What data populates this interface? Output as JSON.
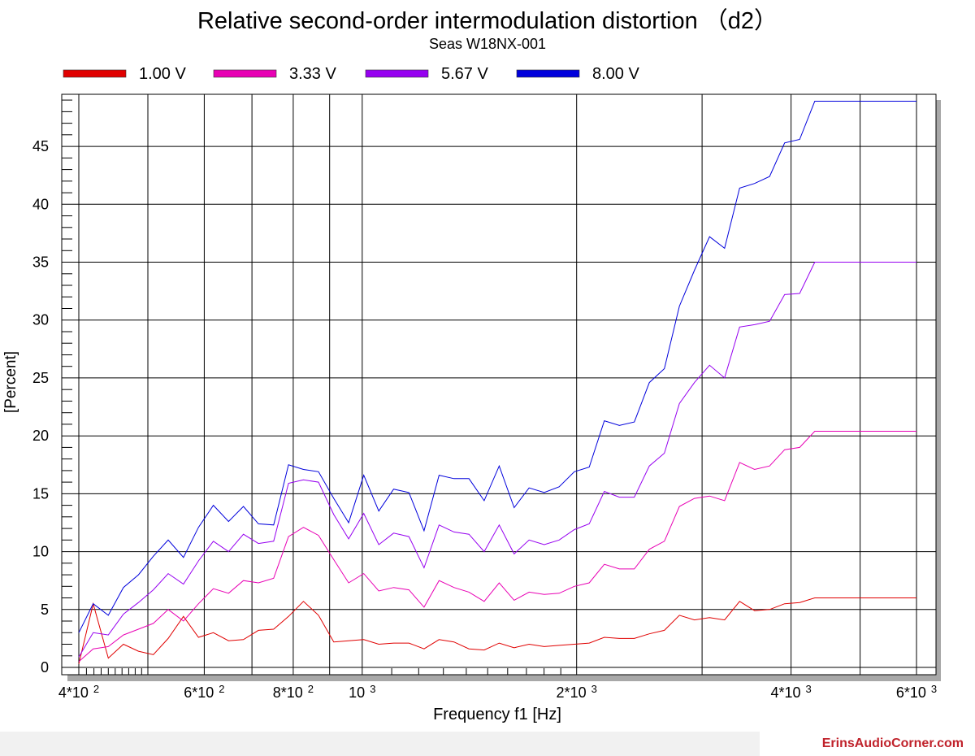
{
  "chart_data": {
    "type": "line",
    "title": "Relative second-order intermodulation distortion （d2）",
    "subtitle": "Seas W18NX-001",
    "xlabel": "Frequency f1  [Hz]",
    "ylabel": "[Percent]",
    "x_scale": "log",
    "xlim": [
      380,
      6300
    ],
    "ylim": [
      0,
      49.5
    ],
    "grid": true,
    "legend_position": "top",
    "x_tick_labels": [
      {
        "value": 400,
        "label": "4*10",
        "exp": "2"
      },
      {
        "value": 600,
        "label": "6*10",
        "exp": "2"
      },
      {
        "value": 800,
        "label": "8*10",
        "exp": "2"
      },
      {
        "value": 1000,
        "label": "10",
        "exp": "3"
      },
      {
        "value": 2000,
        "label": "2*10",
        "exp": "3"
      },
      {
        "value": 4000,
        "label": "4*10",
        "exp": "3"
      },
      {
        "value": 6000,
        "label": "6*10",
        "exp": "3"
      }
    ],
    "y_ticks": [
      0,
      5,
      10,
      15,
      20,
      25,
      30,
      35,
      40,
      45
    ],
    "x": [
      400,
      419,
      440,
      462,
      485,
      509,
      534,
      561,
      589,
      618,
      649,
      681,
      715,
      751,
      788,
      827,
      868,
      912,
      957,
      1005,
      1055,
      1107,
      1163,
      1221,
      1282,
      1345,
      1412,
      1483,
      1557,
      1634,
      1715,
      1801,
      1890,
      1985,
      2083,
      2187,
      2296,
      2410,
      2530,
      2656,
      2788,
      2927,
      3073,
      3226,
      3387,
      3555,
      3732,
      3918,
      4113,
      4318,
      4533,
      4759,
      4996,
      5244,
      5505,
      5779,
      6000
    ],
    "series": [
      {
        "name": "1.00 V",
        "color": "#e00000",
        "values": [
          0.3,
          5.5,
          0.8,
          2.0,
          1.4,
          1.1,
          2.5,
          4.4,
          2.6,
          3.0,
          2.3,
          2.4,
          3.2,
          3.3,
          4.4,
          5.7,
          4.5,
          2.2,
          2.3,
          2.4,
          2.0,
          2.1,
          2.1,
          1.6,
          2.4,
          2.2,
          1.6,
          1.5,
          2.1,
          1.7,
          2.0,
          1.8,
          1.9,
          2.0,
          2.1,
          2.6,
          2.5,
          2.5,
          2.9,
          3.2,
          4.5,
          4.1,
          4.3,
          4.1,
          5.7,
          4.9,
          5.0,
          5.5,
          5.6,
          6.0,
          6.0,
          6.0,
          6.0,
          6.0,
          6.0,
          6.0,
          6.0
        ]
      },
      {
        "name": "3.33 V",
        "color": "#e800b4",
        "values": [
          0.5,
          1.6,
          1.8,
          2.8,
          3.3,
          3.8,
          5.0,
          4.0,
          5.5,
          6.8,
          6.4,
          7.5,
          7.3,
          7.7,
          11.3,
          12.1,
          11.4,
          9.3,
          7.3,
          8.1,
          6.6,
          6.9,
          6.7,
          5.2,
          7.5,
          6.9,
          6.5,
          5.7,
          7.3,
          5.8,
          6.5,
          6.3,
          6.4,
          7.0,
          7.3,
          8.9,
          8.5,
          8.5,
          10.2,
          10.9,
          13.9,
          14.6,
          14.8,
          14.4,
          17.7,
          17.1,
          17.4,
          18.8,
          19.0,
          20.4,
          20.4,
          20.4,
          20.4,
          20.4,
          20.4,
          20.4,
          20.4
        ]
      },
      {
        "name": "5.67 V",
        "color": "#9600f0",
        "values": [
          0.9,
          3.0,
          2.8,
          4.6,
          5.6,
          6.7,
          8.1,
          7.2,
          9.2,
          10.9,
          10.0,
          11.5,
          10.7,
          10.9,
          15.9,
          16.2,
          16.0,
          13.2,
          11.1,
          13.3,
          10.6,
          11.6,
          11.3,
          8.6,
          12.3,
          11.7,
          11.5,
          10.0,
          12.3,
          9.8,
          11.0,
          10.6,
          11.0,
          11.9,
          12.4,
          15.2,
          14.7,
          14.7,
          17.4,
          18.5,
          22.8,
          24.6,
          26.1,
          25.0,
          29.4,
          29.6,
          29.9,
          32.2,
          32.3,
          35.0,
          35.0,
          35.0,
          35.0,
          35.0,
          35.0,
          35.0,
          35.0
        ]
      },
      {
        "name": "8.00 V",
        "color": "#0000dc",
        "values": [
          3.0,
          5.5,
          4.5,
          6.9,
          8.0,
          9.6,
          11.0,
          9.5,
          12.1,
          14.0,
          12.6,
          13.9,
          12.4,
          12.3,
          17.5,
          17.1,
          16.9,
          14.6,
          12.5,
          16.6,
          13.5,
          15.4,
          15.1,
          11.8,
          16.6,
          16.3,
          16.3,
          14.4,
          17.4,
          13.8,
          15.5,
          15.1,
          15.6,
          16.9,
          17.3,
          21.3,
          20.9,
          21.2,
          24.6,
          25.8,
          31.2,
          34.3,
          37.2,
          36.2,
          41.4,
          41.8,
          42.4,
          45.3,
          45.6,
          48.9,
          48.9,
          48.9,
          48.9,
          48.9,
          48.9,
          48.9,
          48.9
        ]
      }
    ]
  },
  "watermark": "ErinsAudioCorner.com"
}
